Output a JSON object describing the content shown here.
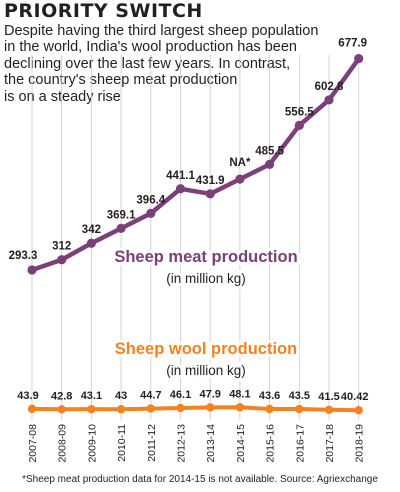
{
  "title": "PRIORITY SWITCH",
  "intro_lines": [
    "Despite having the third largest sheep population",
    "in the world, India's wool production has been",
    "declining over the last few years. In contrast,",
    "the country's sheep meat production",
    "is on a steady rise"
  ],
  "footnote": "*Sheep meat production data for 2014-15 is not available. Source: Agriexchange",
  "colors": {
    "meat": "#7b3f7a",
    "wool": "#f58220",
    "grid": "#c9c9c9"
  },
  "chart_data": {
    "type": "line",
    "categories": [
      "2007-08",
      "2008-09",
      "2009-10",
      "2010-11",
      "2011-12",
      "2012-13",
      "2013-14",
      "2014-15",
      "2015-16",
      "2016-17",
      "2017-18",
      "2018-19"
    ],
    "series": [
      {
        "name": "Sheep meat production",
        "unit": "(in million kg)",
        "values": [
          293.3,
          312,
          342,
          369.1,
          396.4,
          441.1,
          431.9,
          null,
          485.5,
          556.5,
          602.8,
          677.9
        ],
        "labels": [
          "293.3",
          "312",
          "342",
          "369.1",
          "396.4",
          "441.1",
          "431.9",
          "NA*",
          "485.5",
          "556.5",
          "602.8",
          "677.9"
        ]
      },
      {
        "name": "Sheep wool production",
        "unit": "(in million kg)",
        "values": [
          43.9,
          42.8,
          43.1,
          43,
          44.7,
          46.1,
          47.9,
          48.1,
          43.6,
          43.5,
          41.5,
          40.42
        ],
        "labels": [
          "43.9",
          "42.8",
          "43.1",
          "43",
          "44.7",
          "46.1",
          "47.9",
          "48.1",
          "43.6",
          "43.5",
          "41.5",
          "40.42"
        ]
      }
    ],
    "grid": true
  }
}
